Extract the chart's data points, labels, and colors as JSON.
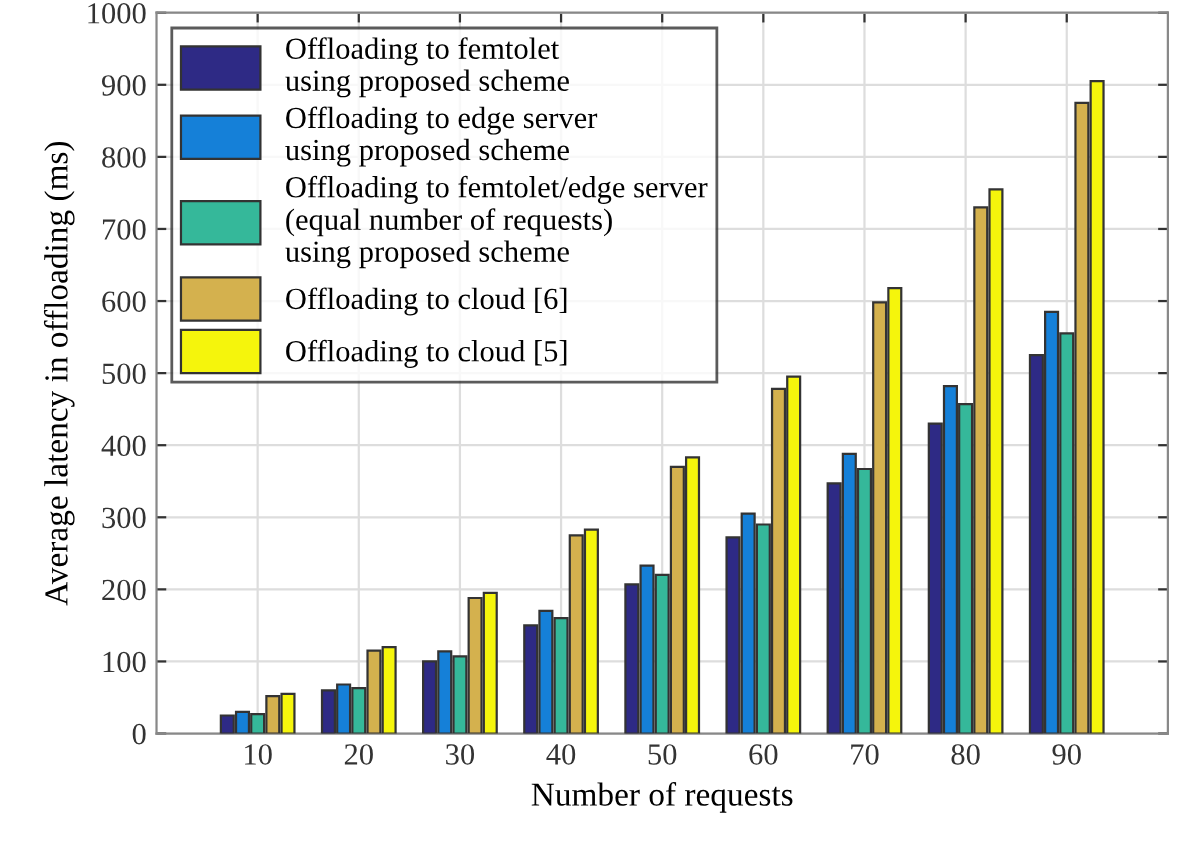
{
  "chart_data": {
    "type": "bar",
    "xlabel": "Number of requests",
    "ylabel": "Average latency in offloading (ms)",
    "x": [
      10,
      20,
      30,
      40,
      50,
      60,
      70,
      80,
      90
    ],
    "series": [
      {
        "name": "Offloading to femtolet\nusing proposed scheme",
        "color": "#2e2a85",
        "values": [
          25,
          60,
          100,
          150,
          207,
          272,
          347,
          430,
          525
        ]
      },
      {
        "name": "Offloading to edge server\nusing proposed scheme",
        "color": "#1580d8",
        "values": [
          30,
          68,
          114,
          170,
          233,
          305,
          388,
          482,
          585
        ]
      },
      {
        "name": "Offloading to femtolet/edge server\n(equal number of requests)\nusing proposed scheme",
        "color": "#35b89a",
        "values": [
          27,
          63,
          107,
          160,
          220,
          290,
          367,
          457,
          555
        ]
      },
      {
        "name": "Offloading to cloud [6]",
        "color": "#d4b14e",
        "values": [
          52,
          115,
          188,
          275,
          370,
          478,
          598,
          730,
          875
        ]
      },
      {
        "name": "Offloading to cloud [5]",
        "color": "#f5f50c",
        "values": [
          55,
          120,
          195,
          283,
          383,
          495,
          618,
          755,
          905
        ]
      }
    ],
    "xlim": [
      0,
      100
    ],
    "xticks": [
      10,
      20,
      30,
      40,
      50,
      60,
      70,
      80,
      90
    ],
    "ylim": [
      0,
      1000
    ],
    "yticks": [
      0,
      100,
      200,
      300,
      400,
      500,
      600,
      700,
      800,
      900,
      1000
    ],
    "grid": true,
    "legend": "top left"
  }
}
